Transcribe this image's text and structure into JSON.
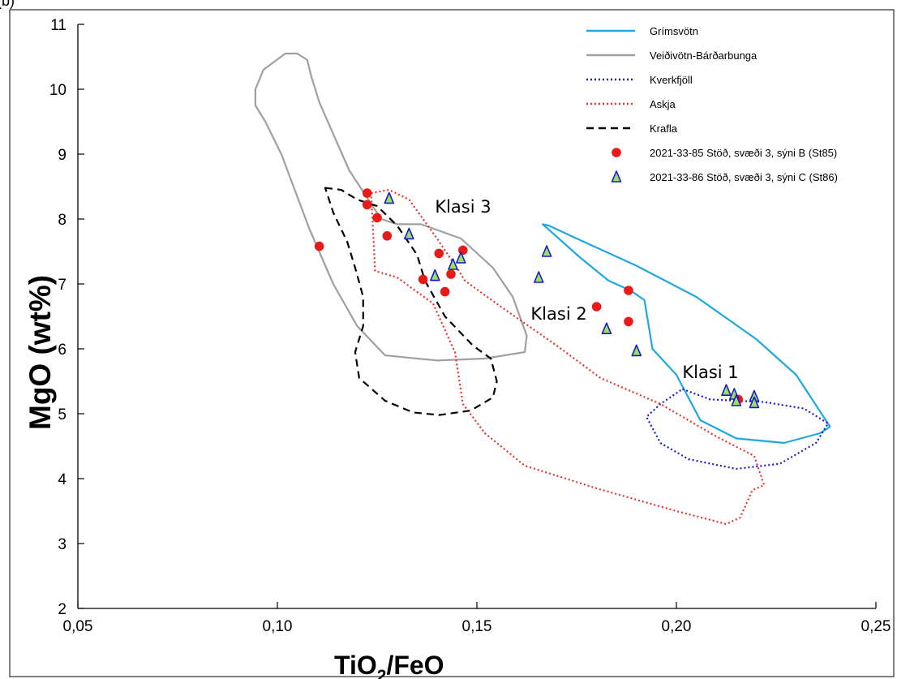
{
  "panel_label": "(b)",
  "chart_data": {
    "type": "scatter",
    "xlabel": {
      "main": "TiO",
      "sub": "2",
      "rest": "/FeO"
    },
    "ylabel": {
      "main": "MgO",
      "rest": " (wt%)"
    },
    "xlim": [
      0.05,
      0.25
    ],
    "ylim": [
      2,
      11
    ],
    "x_ticks": [
      0.05,
      0.1,
      0.15,
      0.2,
      0.25
    ],
    "x_tick_labels": [
      "0,05",
      "0,10",
      "0,15",
      "0,20",
      "0,25"
    ],
    "y_ticks": [
      2,
      3,
      4,
      5,
      6,
      7,
      8,
      9,
      10,
      11
    ],
    "y_tick_labels": [
      "2",
      "3",
      "4",
      "5",
      "6",
      "7",
      "8",
      "9",
      "10",
      "11"
    ],
    "grid": false,
    "legend_position": "top-right",
    "fields": [
      {
        "name": "Grímsvötn",
        "color": "#1ea7e1",
        "style": "solid",
        "points": [
          [
            0.1665,
            7.92
          ],
          [
            0.168,
            7.9
          ],
          [
            0.175,
            7.7
          ],
          [
            0.19,
            7.28
          ],
          [
            0.205,
            6.8
          ],
          [
            0.22,
            6.15
          ],
          [
            0.23,
            5.6
          ],
          [
            0.2385,
            4.8
          ],
          [
            0.236,
            4.7
          ],
          [
            0.227,
            4.55
          ],
          [
            0.215,
            4.62
          ],
          [
            0.206,
            4.9
          ],
          [
            0.2,
            5.6
          ],
          [
            0.194,
            6.0
          ],
          [
            0.192,
            6.75
          ],
          [
            0.1885,
            6.9
          ],
          [
            0.183,
            7.05
          ],
          [
            0.176,
            7.4
          ],
          [
            0.1665,
            7.92
          ]
        ]
      },
      {
        "name": "Veiðivötn-Bárðarbunga",
        "color": "#a0a0a0",
        "style": "solid",
        "points": [
          [
            0.0965,
            10.3
          ],
          [
            0.102,
            10.55
          ],
          [
            0.105,
            10.55
          ],
          [
            0.1075,
            10.45
          ],
          [
            0.1085,
            10.2
          ],
          [
            0.1105,
            9.8
          ],
          [
            0.118,
            8.75
          ],
          [
            0.126,
            8.0
          ],
          [
            0.13,
            7.92
          ],
          [
            0.136,
            7.92
          ],
          [
            0.146,
            7.7
          ],
          [
            0.154,
            7.25
          ],
          [
            0.159,
            6.8
          ],
          [
            0.1625,
            6.2
          ],
          [
            0.162,
            5.95
          ],
          [
            0.152,
            5.85
          ],
          [
            0.14,
            5.82
          ],
          [
            0.127,
            5.9
          ],
          [
            0.12,
            6.35
          ],
          [
            0.114,
            7.0
          ],
          [
            0.108,
            7.85
          ],
          [
            0.101,
            9.0
          ],
          [
            0.097,
            9.5
          ],
          [
            0.0945,
            9.75
          ],
          [
            0.0945,
            10.0
          ],
          [
            0.0965,
            10.3
          ]
        ]
      },
      {
        "name": "Kverkfjöll",
        "color": "#1a1acc",
        "style": "dotted",
        "points": [
          [
            0.2015,
            5.38
          ],
          [
            0.2085,
            5.22
          ],
          [
            0.222,
            5.18
          ],
          [
            0.232,
            5.08
          ],
          [
            0.238,
            4.85
          ],
          [
            0.235,
            4.55
          ],
          [
            0.226,
            4.23
          ],
          [
            0.215,
            4.15
          ],
          [
            0.203,
            4.3
          ],
          [
            0.196,
            4.55
          ],
          [
            0.1925,
            4.95
          ],
          [
            0.196,
            5.15
          ],
          [
            0.2015,
            5.38
          ]
        ]
      },
      {
        "name": "Askja",
        "color": "#e8322c",
        "style": "dotted",
        "points": [
          [
            0.1235,
            8.4
          ],
          [
            0.128,
            8.45
          ],
          [
            0.133,
            8.3
          ],
          [
            0.14,
            7.7
          ],
          [
            0.1455,
            7.2
          ],
          [
            0.147,
            7.05
          ],
          [
            0.156,
            6.65
          ],
          [
            0.17,
            6.05
          ],
          [
            0.181,
            5.55
          ],
          [
            0.196,
            5.15
          ],
          [
            0.21,
            4.65
          ],
          [
            0.2195,
            4.35
          ],
          [
            0.222,
            3.9
          ],
          [
            0.219,
            3.82
          ],
          [
            0.216,
            3.4
          ],
          [
            0.2125,
            3.3
          ],
          [
            0.2,
            3.5
          ],
          [
            0.18,
            3.85
          ],
          [
            0.162,
            4.2
          ],
          [
            0.152,
            4.7
          ],
          [
            0.1465,
            5.15
          ],
          [
            0.1445,
            5.95
          ],
          [
            0.139,
            6.7
          ],
          [
            0.13,
            7.1
          ],
          [
            0.1245,
            7.2
          ],
          [
            0.1235,
            8.4
          ]
        ]
      },
      {
        "name": "Krafla",
        "color": "#000000",
        "style": "dashed",
        "points": [
          [
            0.112,
            8.48
          ],
          [
            0.116,
            8.45
          ],
          [
            0.12,
            8.3
          ],
          [
            0.125,
            8.2
          ],
          [
            0.13,
            7.9
          ],
          [
            0.135,
            7.45
          ],
          [
            0.137,
            7.05
          ],
          [
            0.142,
            6.5
          ],
          [
            0.149,
            6.05
          ],
          [
            0.1535,
            5.85
          ],
          [
            0.155,
            5.5
          ],
          [
            0.154,
            5.25
          ],
          [
            0.1485,
            5.05
          ],
          [
            0.1405,
            4.98
          ],
          [
            0.134,
            5.02
          ],
          [
            0.127,
            5.2
          ],
          [
            0.1205,
            5.55
          ],
          [
            0.1195,
            5.95
          ],
          [
            0.1215,
            6.35
          ],
          [
            0.1215,
            6.8
          ],
          [
            0.1195,
            7.25
          ],
          [
            0.1175,
            7.65
          ],
          [
            0.114,
            8.1
          ],
          [
            0.112,
            8.48
          ]
        ]
      }
    ],
    "series": [
      {
        "name": "2021-33-85 Stöð, svæði 3, sýni B (St85)",
        "marker": "circle",
        "color": "#e81b1b",
        "points": [
          [
            0.1105,
            7.58
          ],
          [
            0.1225,
            8.4
          ],
          [
            0.1225,
            8.22
          ],
          [
            0.125,
            8.02
          ],
          [
            0.1275,
            7.74
          ],
          [
            0.1365,
            7.07
          ],
          [
            0.1405,
            7.47
          ],
          [
            0.142,
            6.88
          ],
          [
            0.1435,
            7.15
          ],
          [
            0.1465,
            7.52
          ],
          [
            0.18,
            6.65
          ],
          [
            0.188,
            6.9
          ],
          [
            0.188,
            6.42
          ],
          [
            0.2155,
            5.22
          ]
        ]
      },
      {
        "name": "2021-33-86 Stöð, svæði 3, sýni C (St86)",
        "marker": "triangle",
        "color": "#9be05a",
        "edge_color": "#1a1acc",
        "points": [
          [
            0.128,
            8.32
          ],
          [
            0.133,
            7.77
          ],
          [
            0.1395,
            7.13
          ],
          [
            0.144,
            7.3
          ],
          [
            0.146,
            7.4
          ],
          [
            0.1655,
            7.1
          ],
          [
            0.1675,
            7.5
          ],
          [
            0.1825,
            6.31
          ],
          [
            0.19,
            5.97
          ],
          [
            0.2125,
            5.36
          ],
          [
            0.2145,
            5.3
          ],
          [
            0.215,
            5.2
          ],
          [
            0.2195,
            5.27
          ],
          [
            0.2195,
            5.17
          ]
        ]
      }
    ],
    "annotations": [
      {
        "text": "Klasi 3",
        "x": 0.1395,
        "y": 8.1
      },
      {
        "text": "Klasi 2",
        "x": 0.1635,
        "y": 6.45
      },
      {
        "text": "Klasi 1",
        "x": 0.2015,
        "y": 5.55
      }
    ]
  }
}
